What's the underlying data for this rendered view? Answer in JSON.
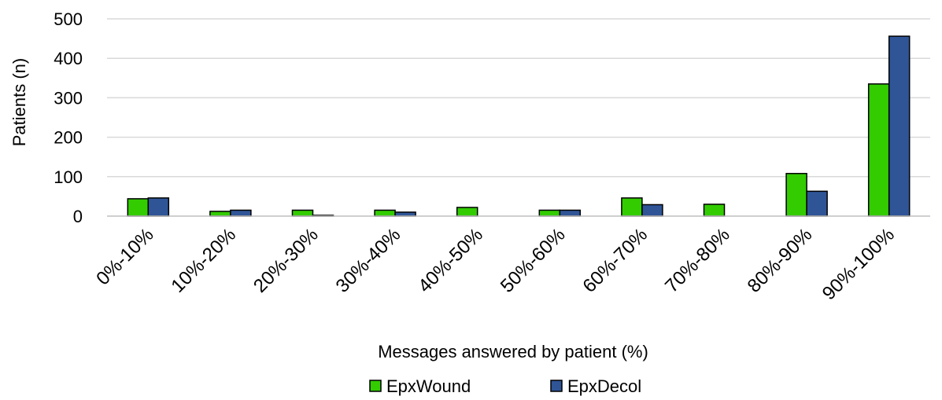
{
  "chart_data": {
    "type": "bar",
    "categories": [
      "0%-10%",
      "10%-20%",
      "20%-30%",
      "30%-40%",
      "40%-50%",
      "50%-60%",
      "60%-70%",
      "70%-80%",
      "80%-90%",
      "90%-100%"
    ],
    "series": [
      {
        "name": "EpxWound",
        "color": "#33cc00",
        "values": [
          44,
          12,
          15,
          15,
          22,
          15,
          46,
          30,
          108,
          335
        ]
      },
      {
        "name": "EpxDecol",
        "color": "#2f5597",
        "values": [
          46,
          15,
          2,
          10,
          0,
          15,
          29,
          0,
          63,
          456
        ]
      }
    ],
    "title": "",
    "xlabel": "Messages answered by patient (%)",
    "ylabel": "Patients (n)",
    "ylim": [
      0,
      500
    ],
    "yticks": [
      0,
      100,
      200,
      300,
      400,
      500
    ],
    "grid": true,
    "legend_position": "bottom"
  }
}
